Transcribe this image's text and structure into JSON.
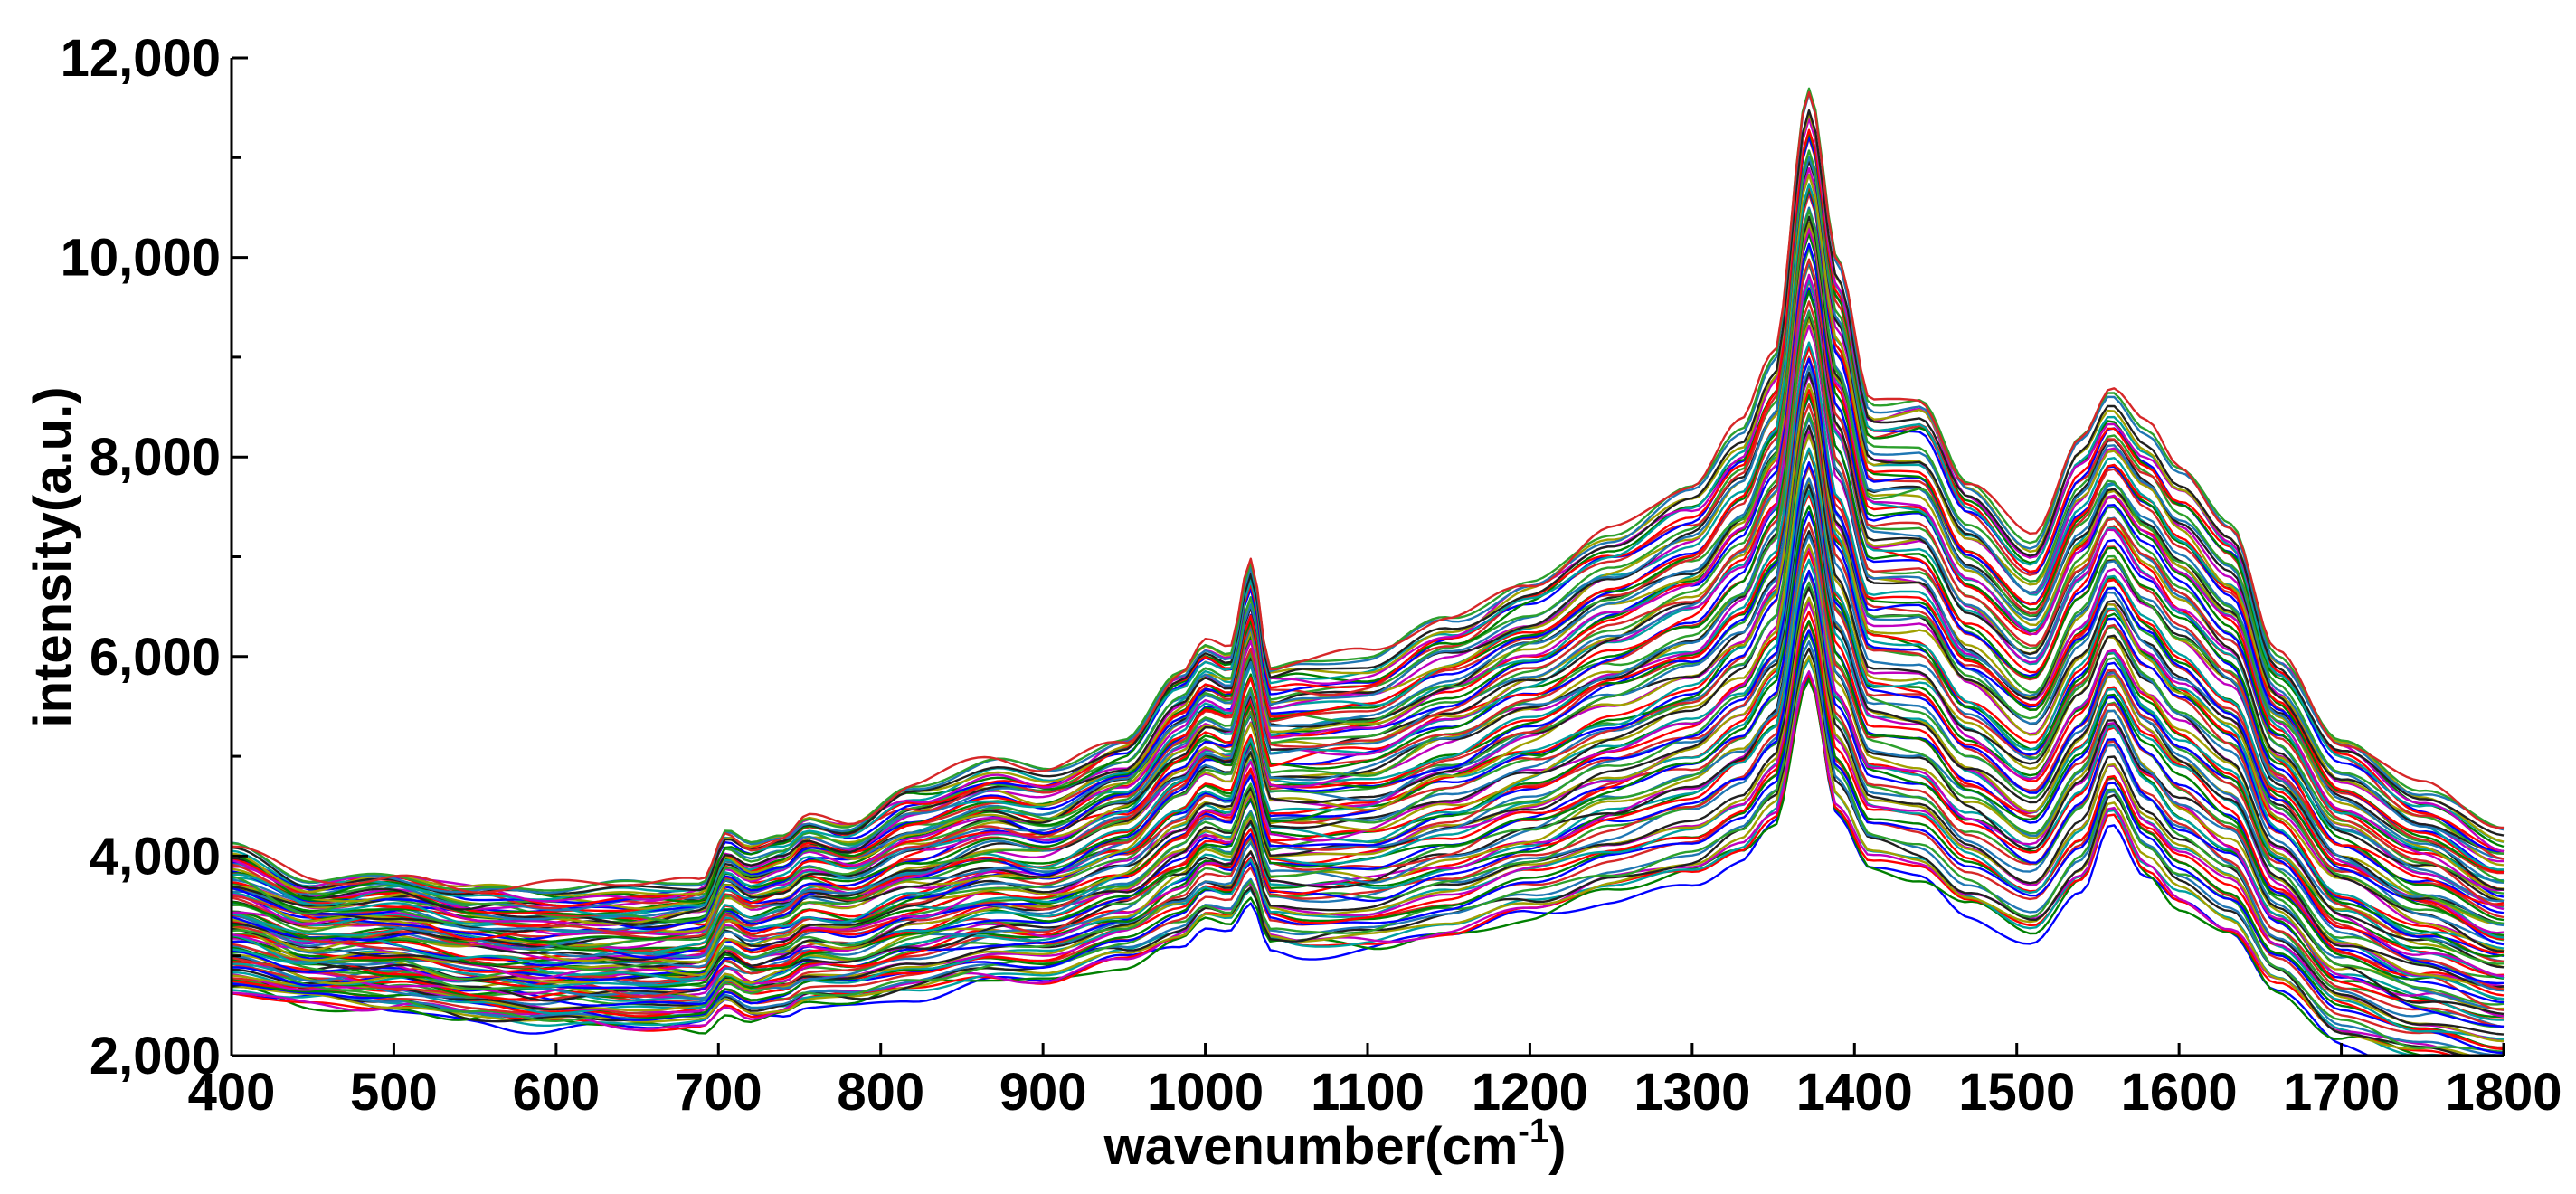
{
  "chart_data": {
    "type": "line",
    "title": "",
    "xlabel": "wavenumber(cm",
    "xlabel_superscript": "-1",
    "xlabel_suffix": ")",
    "ylabel": "intensity(a.u.)",
    "xlim": [
      400,
      1800
    ],
    "ylim": [
      2000,
      12000
    ],
    "grid": false,
    "legend": "none",
    "x_ticks": [
      400,
      500,
      600,
      700,
      800,
      900,
      1000,
      1100,
      1200,
      1300,
      1400,
      1500,
      1600,
      1700,
      1800
    ],
    "x_tick_labels": [
      "400",
      "500",
      "600",
      "700",
      "800",
      "900",
      "1000",
      "1100",
      "1200",
      "1300",
      "1400",
      "1500",
      "1600",
      "1700",
      "1800"
    ],
    "y_ticks": [
      2000,
      4000,
      6000,
      8000,
      10000,
      12000
    ],
    "y_tick_labels": [
      "2,000",
      "4,000",
      "6,000",
      "8,000",
      "10,000",
      "12,000"
    ],
    "y_minor_ticks": [
      3000,
      5000,
      7000,
      9000,
      11000
    ],
    "series_colors": [
      "#0000ff",
      "#008000",
      "#ff0000",
      "#00a0a0",
      "#c000c0",
      "#a0a000",
      "#202020",
      "#1f77b4",
      "#2ca02c",
      "#d62728"
    ],
    "envelope_x": [
      400,
      450,
      500,
      550,
      600,
      650,
      690,
      705,
      720,
      740,
      755,
      780,
      820,
      870,
      900,
      950,
      985,
      1000,
      1015,
      1028,
      1040,
      1060,
      1100,
      1150,
      1200,
      1250,
      1300,
      1330,
      1350,
      1372,
      1390,
      1410,
      1440,
      1470,
      1510,
      1540,
      1558,
      1580,
      1600,
      1632,
      1660,
      1700,
      1750,
      1800
    ],
    "upper_envelope": [
      4080,
      3750,
      3850,
      3700,
      3680,
      3700,
      3750,
      4280,
      4150,
      4250,
      4450,
      4350,
      4700,
      4950,
      4850,
      5200,
      5900,
      6200,
      6100,
      7000,
      5900,
      5950,
      6000,
      6400,
      6800,
      7300,
      7700,
      8300,
      9000,
      11700,
      10000,
      8600,
      8650,
      7800,
      7200,
      8200,
      8650,
      8300,
      7900,
      7350,
      6100,
      5200,
      4700,
      4250
    ],
    "lower_envelope": [
      2600,
      2500,
      2450,
      2350,
      2280,
      2250,
      2250,
      2450,
      2350,
      2400,
      2500,
      2500,
      2600,
      2700,
      2700,
      2900,
      3100,
      3300,
      3250,
      3500,
      3050,
      3000,
      3000,
      3150,
      3350,
      3550,
      3700,
      3900,
      4200,
      5650,
      4300,
      3800,
      3700,
      3400,
      3100,
      3600,
      4300,
      3700,
      3400,
      3150,
      2600,
      2100,
      1900,
      1800
    ]
  }
}
